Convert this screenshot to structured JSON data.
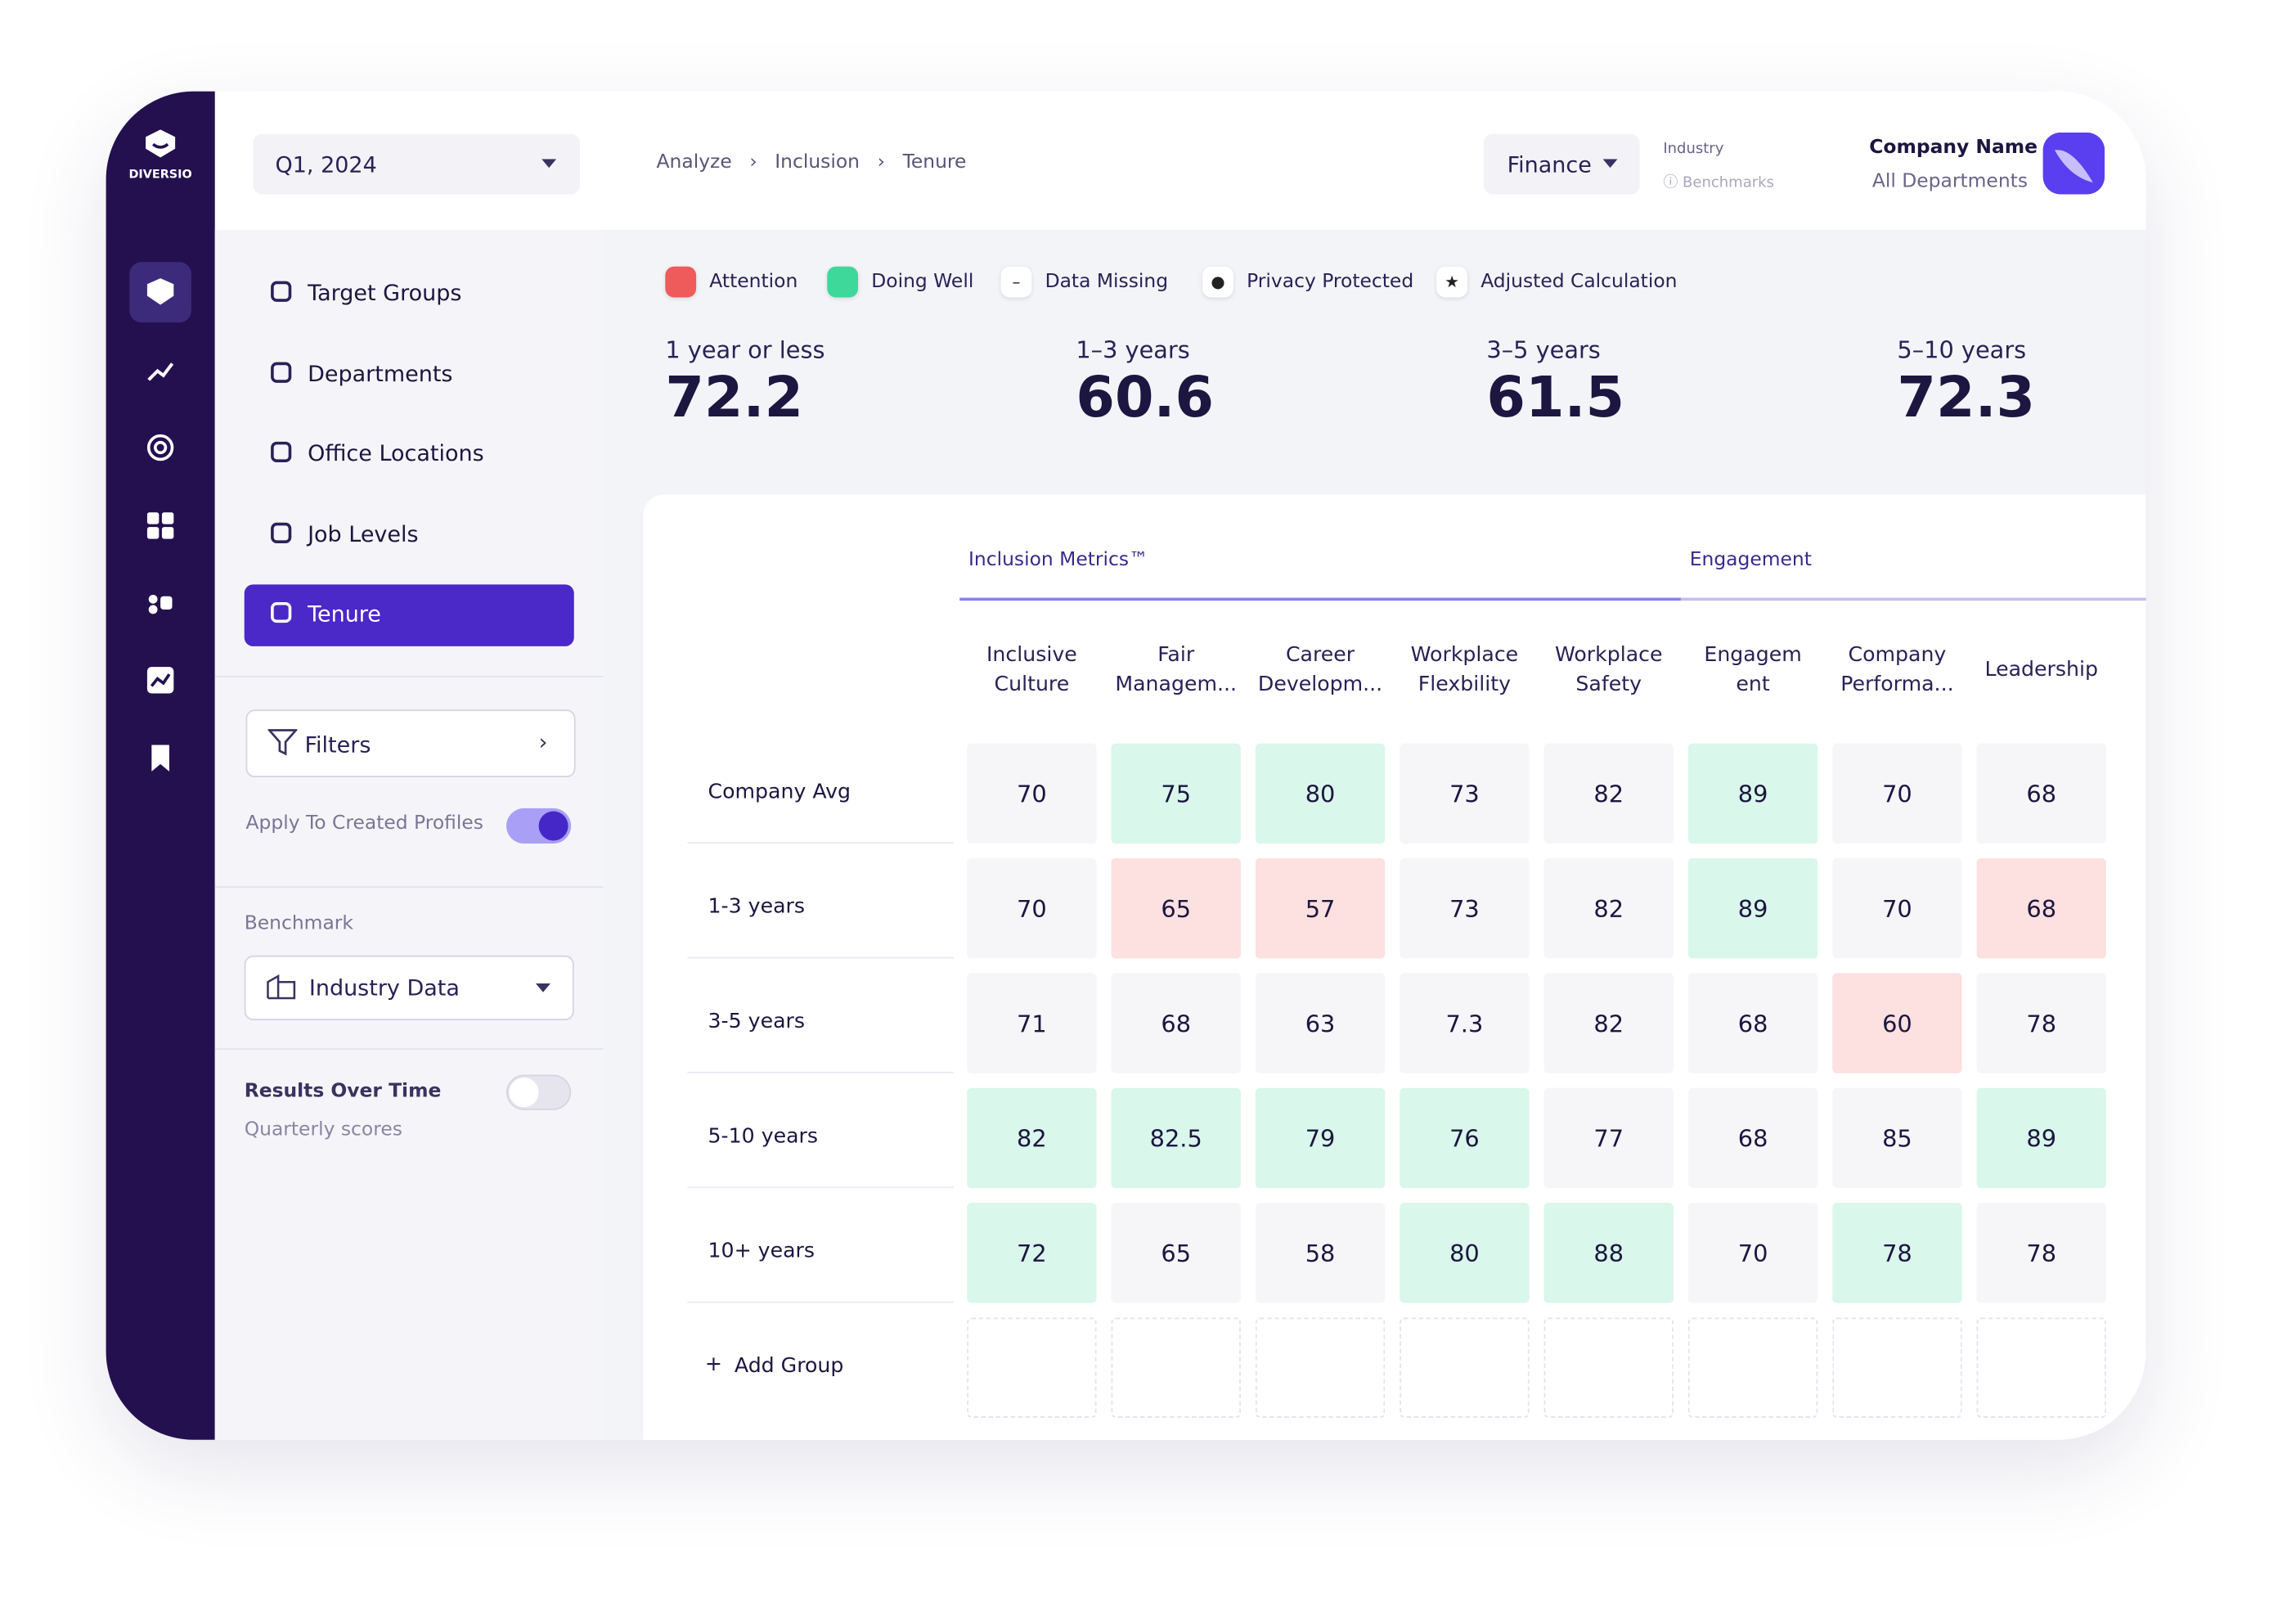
{
  "topbar": {
    "period": "Q1, 2024",
    "breadcrumb": [
      "Analyze",
      "Inclusion",
      "Tenure"
    ],
    "department": "Finance",
    "industry": "Industry",
    "benchmarks": "Benchmarks",
    "company": "Company Name",
    "scope": "All Departments"
  },
  "brand": "DIVERSIO",
  "nav": [
    "Target Groups",
    "Departments",
    "Office Locations",
    "Job Levels",
    "Tenure"
  ],
  "filters": {
    "label": "Filters",
    "apply": "Apply To Created Profiles",
    "benchmark": "Benchmark",
    "benchmark_value": "Industry Data",
    "results": "Results Over Time",
    "results_sub": "Quarterly scores"
  },
  "legend": [
    {
      "label": "Attention",
      "color": "#ef5a5a"
    },
    {
      "label": "Doing Well",
      "color": "#3ed89a"
    },
    {
      "label": "Data Missing"
    },
    {
      "label": "Privacy Protected"
    },
    {
      "label": "Adjusted Calculation"
    }
  ],
  "stats": [
    {
      "label": "1 year or less",
      "value": 72.2
    },
    {
      "label": "1–3 years",
      "value": 60.6
    },
    {
      "label": "3–5 years",
      "value": 61.5
    },
    {
      "label": "5–10 years",
      "value": 72.3
    }
  ],
  "table": {
    "groups": [
      "Inclusion Metrics™",
      "Engagement"
    ],
    "columns": [
      [
        "Inclusive",
        "Culture"
      ],
      [
        "Fair",
        "Managem..."
      ],
      [
        "Career",
        "Developm..."
      ],
      [
        "Workplace",
        "Flexbility"
      ],
      [
        "Workplace",
        "Safety"
      ],
      [
        "Engagem",
        "ent"
      ],
      [
        "Company",
        "Performa..."
      ],
      [
        "Leadership"
      ]
    ],
    "rows": [
      {
        "label": "Company Avg",
        "values": [
          70,
          75,
          80,
          73,
          82,
          89,
          70,
          68
        ],
        "colors": [
          "#f6f6f9",
          "#d9f7eb",
          "#d9f7eb",
          "#f6f6f9",
          "#f6f6f9",
          "#d9f7eb",
          "#f6f6f9",
          "#f6f6f9"
        ]
      },
      {
        "label": "1-3 years",
        "values": [
          70,
          65,
          57,
          73,
          82,
          89,
          70,
          68
        ],
        "colors": [
          "#f6f6f9",
          "#fde0e0",
          "#fde0e0",
          "#f6f6f9",
          "#f6f6f9",
          "#d9f7eb",
          "#f6f6f9",
          "#fde0e0"
        ]
      },
      {
        "label": "3-5 years",
        "values": [
          71,
          68,
          63,
          7.3,
          82,
          68,
          60,
          78
        ],
        "colors": [
          "#f6f6f9",
          "#f6f6f9",
          "#f6f6f9",
          "#f6f6f9",
          "#f6f6f9",
          "#f6f6f9",
          "#fde0e0",
          "#f6f6f9"
        ]
      },
      {
        "label": "5-10 years",
        "values": [
          82,
          82.5,
          79,
          76,
          77,
          68,
          85,
          89
        ],
        "colors": [
          "#d9f7eb",
          "#d9f7eb",
          "#d9f7eb",
          "#d9f7eb",
          "#f6f6f9",
          "#f6f6f9",
          "#f6f6f9",
          "#d9f7eb"
        ]
      },
      {
        "label": "10+ years",
        "values": [
          72,
          65,
          58,
          80,
          88,
          70,
          78,
          78
        ],
        "colors": [
          "#d9f7eb",
          "#f6f6f9",
          "#f6f6f9",
          "#d9f7eb",
          "#d9f7eb",
          "#f6f6f9",
          "#d9f7eb",
          "#f6f6f9"
        ]
      }
    ],
    "add": "Add Group"
  }
}
